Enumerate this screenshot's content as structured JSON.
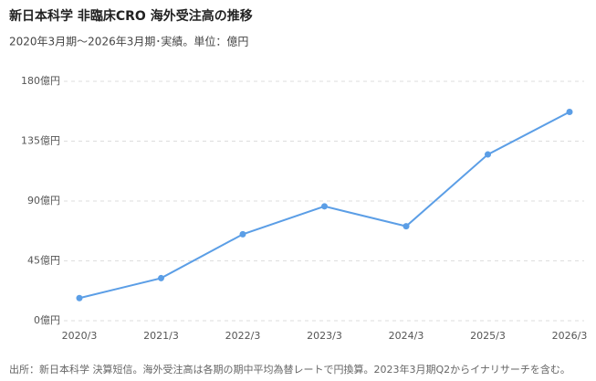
{
  "chart_data": {
    "type": "line",
    "title": "新日本科学 非臨床CRO 海外受注高の推移",
    "subtitle": "2020年3月期〜2026年3月期･実績。単位：億円",
    "categories": [
      "2020/3",
      "2021/3",
      "2022/3",
      "2023/3",
      "2024/3",
      "2025/3",
      "2026/3"
    ],
    "series": [
      {
        "name": "海外受注高",
        "color": "#5b9ee6",
        "values": [
          17,
          32,
          65,
          86,
          71,
          125,
          157
        ]
      }
    ],
    "ylim": [
      0,
      180
    ],
    "yticks": [
      {
        "value": 0,
        "label": "0億円"
      },
      {
        "value": 45,
        "label": "45億円"
      },
      {
        "value": 90,
        "label": "90億円"
      },
      {
        "value": 135,
        "label": "135億円"
      },
      {
        "value": 180,
        "label": "180億円"
      }
    ],
    "grid": true,
    "source": "出所：新日本科学 決算短信。海外受注高は各期の期中平均為替レートで円換算。2023年3月期Q2からイナリサーチを含む。"
  }
}
